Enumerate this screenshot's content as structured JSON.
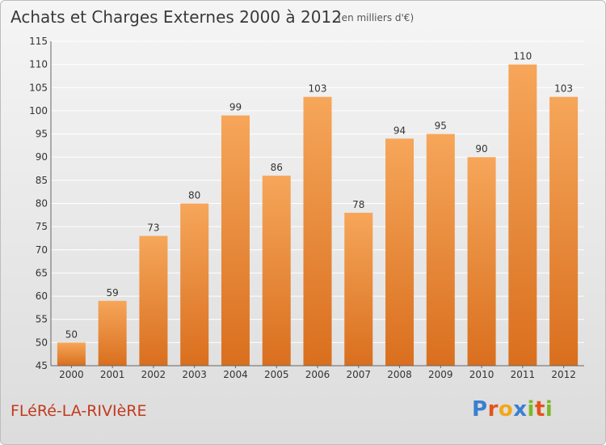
{
  "title": "Achats et Charges Externes 2000 à 2012",
  "unit": "(en milliers d'€)",
  "commune": "FLéRé-LA-RIVIèRE",
  "logo": {
    "letters": [
      {
        "ch": "P",
        "color": "#3a7fd0"
      },
      {
        "ch": "r",
        "color": "#e5531a"
      },
      {
        "ch": "o",
        "color": "#f2a71b"
      },
      {
        "ch": "x",
        "color": "#3a7fd0"
      },
      {
        "ch": "i",
        "color": "#7cb829"
      },
      {
        "ch": "t",
        "color": "#e5531a"
      },
      {
        "ch": "i",
        "color": "#7cb829"
      }
    ]
  },
  "colors": {
    "bar_light": "#f6a65a",
    "bar_dark": "#d96f1e",
    "grid": "#ffffff",
    "axis_text": "#333333"
  },
  "chart_data": {
    "type": "bar",
    "categories": [
      "2000",
      "2001",
      "2002",
      "2003",
      "2004",
      "2005",
      "2006",
      "2007",
      "2008",
      "2009",
      "2010",
      "2011",
      "2012"
    ],
    "values": [
      50,
      59,
      73,
      80,
      99,
      86,
      103,
      78,
      94,
      95,
      90,
      110,
      103
    ],
    "ylim": [
      45,
      115
    ],
    "yticks": [
      45,
      50,
      55,
      60,
      65,
      70,
      75,
      80,
      85,
      90,
      95,
      100,
      105,
      110,
      115
    ],
    "grid": true
  }
}
